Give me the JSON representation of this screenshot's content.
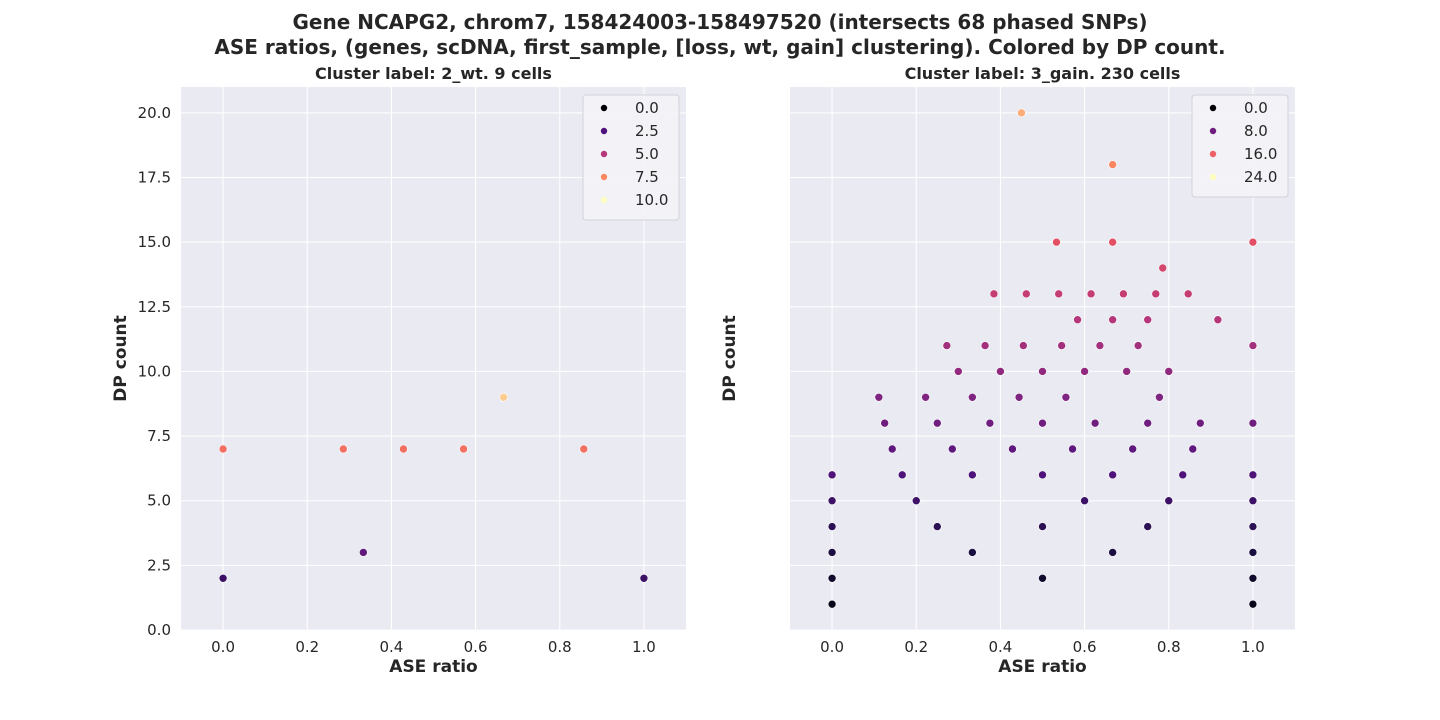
{
  "suptitle_line1": "Gene NCAPG2, chrom7, 158424003-158497520 (intersects 68 phased SNPs)",
  "suptitle_line2": "ASE ratios, (genes, scDNA, first_sample, [loss, wt, gain] clustering). Colored by DP count.",
  "chart_data": [
    {
      "type": "scatter",
      "title": "Cluster label: 2_wt. 9 cells",
      "xlabel": "ASE ratio",
      "ylabel": "DP count",
      "xlim": [
        -0.1,
        1.1
      ],
      "ylim": [
        0,
        21
      ],
      "xticks": [
        "0.0",
        "0.2",
        "0.4",
        "0.6",
        "0.8",
        "1.0"
      ],
      "yticks": [
        "0.0",
        "2.5",
        "5.0",
        "7.5",
        "10.0",
        "12.5",
        "15.0",
        "17.5",
        "20.0"
      ],
      "grid": true,
      "legend_position": "top-right",
      "legend": [
        "0.0",
        "2.5",
        "5.0",
        "7.5",
        "10.0"
      ],
      "hue_max": 10,
      "points": [
        [
          0.0,
          7
        ],
        [
          0.2857,
          7
        ],
        [
          0.4286,
          7
        ],
        [
          0.5714,
          7
        ],
        [
          0.8571,
          7
        ],
        [
          0.6667,
          9
        ],
        [
          0.3333,
          3
        ],
        [
          0.0,
          2
        ],
        [
          1.0,
          2
        ]
      ]
    },
    {
      "type": "scatter",
      "title": "Cluster label: 3_gain. 230 cells",
      "xlabel": "ASE ratio",
      "ylabel": "DP count",
      "xlim": [
        -0.1,
        1.1
      ],
      "ylim": [
        0,
        21
      ],
      "xticks": [
        "0.0",
        "0.2",
        "0.4",
        "0.6",
        "0.8",
        "1.0"
      ],
      "grid": true,
      "legend_position": "top-right",
      "legend": [
        "0.0",
        "8.0",
        "16.0",
        "24.0"
      ],
      "hue_max": 24,
      "points": [
        [
          0.45,
          20
        ],
        [
          0.6667,
          18
        ],
        [
          0.5333,
          15
        ],
        [
          0.6667,
          15
        ],
        [
          1.0,
          15
        ],
        [
          0.7857,
          14
        ],
        [
          0.3846,
          13
        ],
        [
          0.4615,
          13
        ],
        [
          0.5385,
          13
        ],
        [
          0.6154,
          13
        ],
        [
          0.6923,
          13
        ],
        [
          0.7692,
          13
        ],
        [
          0.8462,
          13
        ],
        [
          0.5833,
          12
        ],
        [
          0.6667,
          12
        ],
        [
          0.75,
          12
        ],
        [
          0.9167,
          12
        ],
        [
          0.2727,
          11
        ],
        [
          0.3636,
          11
        ],
        [
          0.4545,
          11
        ],
        [
          0.5455,
          11
        ],
        [
          0.6364,
          11
        ],
        [
          0.7273,
          11
        ],
        [
          1.0,
          11
        ],
        [
          0.3,
          10
        ],
        [
          0.4,
          10
        ],
        [
          0.5,
          10
        ],
        [
          0.6,
          10
        ],
        [
          0.7,
          10
        ],
        [
          0.8,
          10
        ],
        [
          0.1111,
          9
        ],
        [
          0.2222,
          9
        ],
        [
          0.3333,
          9
        ],
        [
          0.4444,
          9
        ],
        [
          0.5556,
          9
        ],
        [
          0.7778,
          9
        ],
        [
          0.125,
          8
        ],
        [
          0.25,
          8
        ],
        [
          0.375,
          8
        ],
        [
          0.5,
          8
        ],
        [
          0.625,
          8
        ],
        [
          0.75,
          8
        ],
        [
          0.875,
          8
        ],
        [
          1.0,
          8
        ],
        [
          0.1429,
          7
        ],
        [
          0.2857,
          7
        ],
        [
          0.4286,
          7
        ],
        [
          0.5714,
          7
        ],
        [
          0.7143,
          7
        ],
        [
          0.8571,
          7
        ],
        [
          0.0,
          6
        ],
        [
          0.1667,
          6
        ],
        [
          0.3333,
          6
        ],
        [
          0.5,
          6
        ],
        [
          0.6667,
          6
        ],
        [
          0.8333,
          6
        ],
        [
          1.0,
          6
        ],
        [
          0.0,
          5
        ],
        [
          0.2,
          5
        ],
        [
          0.6,
          5
        ],
        [
          0.8,
          5
        ],
        [
          1.0,
          5
        ],
        [
          0.0,
          4
        ],
        [
          0.25,
          4
        ],
        [
          0.5,
          4
        ],
        [
          0.75,
          4
        ],
        [
          1.0,
          4
        ],
        [
          0.0,
          3
        ],
        [
          0.3333,
          3
        ],
        [
          0.6667,
          3
        ],
        [
          1.0,
          3
        ],
        [
          0.0,
          2
        ],
        [
          0.5,
          2
        ],
        [
          1.0,
          2
        ],
        [
          0.0,
          1
        ],
        [
          1.0,
          1
        ]
      ]
    }
  ]
}
